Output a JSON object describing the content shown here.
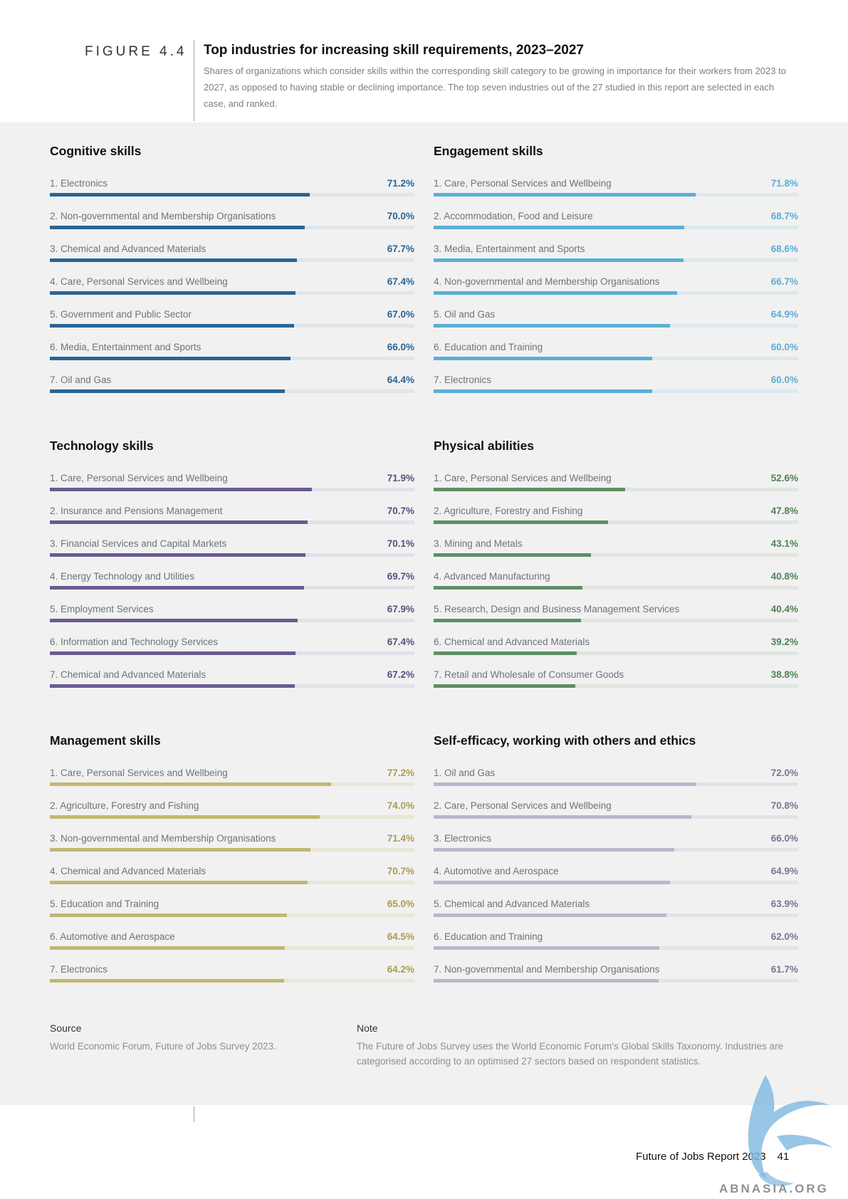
{
  "header": {
    "figure_label": "FIGURE 4.4",
    "title": "Top industries for increasing skill requirements, 2023–2027",
    "subtitle": "Shares of organizations which consider skills within the corresponding skill category to be growing in importance for their workers from 2023 to 2027, as opposed to having stable or declining importance. The top seven industries out of the 27 studied in this report are selected in each case, and ranked."
  },
  "chart_data": [
    {
      "type": "bar",
      "title": "Cognitive skills",
      "color": "#2a6496",
      "track_color": "#dfe6ea",
      "value_color": "#2a6496",
      "xlim": [
        0,
        100
      ],
      "categories": [
        "1. Electronics",
        "2. Non-governmental and Membership Organisations",
        "3. Chemical and Advanced Materials",
        "4. Care, Personal Services and Wellbeing",
        "5. Government and Public Sector",
        "6. Media, Entertainment and Sports",
        "7. Oil and Gas"
      ],
      "values": [
        71.2,
        70.0,
        67.7,
        67.4,
        67.0,
        66.0,
        64.4
      ],
      "value_labels": [
        "71.2%",
        "70.0%",
        "67.7%",
        "67.4%",
        "67.0%",
        "66.0%",
        "64.4%"
      ]
    },
    {
      "type": "bar",
      "title": "Engagement skills",
      "color": "#5aafd6",
      "track_color": "#dde8ee",
      "value_color": "#5aafd6",
      "xlim": [
        0,
        100
      ],
      "categories": [
        "1. Care, Personal Services and Wellbeing",
        "2. Accommodation, Food and Leisure",
        "3. Media, Entertainment and Sports",
        "4. Non-governmental and Membership Organisations",
        "5. Oil and Gas",
        "6. Education and Training",
        "7. Electronics"
      ],
      "values": [
        71.8,
        68.7,
        68.6,
        66.7,
        64.9,
        60.0,
        60.0
      ],
      "value_labels": [
        "71.8%",
        "68.7%",
        "68.6%",
        "66.7%",
        "64.9%",
        "60.0%",
        "60.0%"
      ]
    },
    {
      "type": "bar",
      "title": "Technology skills",
      "color": "#6b5a90",
      "track_color": "#e2e0e8",
      "value_color": "#5b4e7e",
      "xlim": [
        0,
        100
      ],
      "categories": [
        "1. Care, Personal Services and Wellbeing",
        "2. Insurance and Pensions Management",
        "3. Financial Services and Capital Markets",
        "4. Energy Technology and Utilities",
        "5. Employment Services",
        "6. Information and Technology Services",
        "7. Chemical and Advanced Materials"
      ],
      "values": [
        71.9,
        70.7,
        70.1,
        69.7,
        67.9,
        67.4,
        67.2
      ],
      "value_labels": [
        "71.9%",
        "70.7%",
        "70.1%",
        "69.7%",
        "67.9%",
        "67.4%",
        "67.2%"
      ]
    },
    {
      "type": "bar",
      "title": "Physical abilities",
      "color": "#5e8f63",
      "track_color": "#dfe6df",
      "value_color": "#4f8255",
      "xlim": [
        0,
        100
      ],
      "categories": [
        "1. Care, Personal Services and Wellbeing",
        "2. Agriculture, Forestry and Fishing",
        "3. Mining and Metals",
        "4. Advanced Manufacturing",
        "5. Research, Design and Business Management Services",
        "6. Chemical and Advanced Materials",
        "7. Retail and Wholesale of Consumer Goods"
      ],
      "values": [
        52.6,
        47.8,
        43.1,
        40.8,
        40.4,
        39.2,
        38.8
      ],
      "value_labels": [
        "52.6%",
        "47.8%",
        "43.1%",
        "40.8%",
        "40.4%",
        "39.2%",
        "38.8%"
      ]
    },
    {
      "type": "bar",
      "title": "Management skills",
      "color": "#c2b773",
      "track_color": "#e7e6d8",
      "value_color": "#a89c55",
      "xlim": [
        0,
        100
      ],
      "categories": [
        "1. Care, Personal Services and Wellbeing",
        "2. Agriculture, Forestry and Fishing",
        "3. Non-governmental and Membership Organisations",
        "4. Chemical and Advanced Materials",
        "5. Education and Training",
        "6. Automotive and Aerospace",
        "7. Electronics"
      ],
      "values": [
        77.2,
        74.0,
        71.4,
        70.7,
        65.0,
        64.5,
        64.2
      ],
      "value_labels": [
        "77.2%",
        "74.0%",
        "71.4%",
        "70.7%",
        "65.0%",
        "64.5%",
        "64.2%"
      ]
    },
    {
      "type": "bar",
      "title": "Self-efficacy, working with others and ethics",
      "color": "#bdb5cc",
      "track_color": "#e4e2e8",
      "value_color": "#7d7591",
      "xlim": [
        0,
        100
      ],
      "categories": [
        "1. Oil and Gas",
        "2. Care, Personal Services and Wellbeing",
        "3. Electronics",
        "4. Automotive and Aerospace",
        "5. Chemical and Advanced Materials",
        "6. Education and Training",
        "7. Non-governmental and Membership Organisations"
      ],
      "values": [
        72.0,
        70.8,
        66.0,
        64.9,
        63.9,
        62.0,
        61.7
      ],
      "value_labels": [
        "72.0%",
        "70.8%",
        "66.0%",
        "64.9%",
        "63.9%",
        "62.0%",
        "61.7%"
      ]
    }
  ],
  "source": {
    "heading": "Source",
    "text": "World Economic Forum, Future of Jobs Survey 2023."
  },
  "note": {
    "heading": "Note",
    "text": "The Future of Jobs Survey uses the World Economic Forum's Global Skills Taxonomy. Industries are categorised according to an optimised 27 sectors based on respondent statistics."
  },
  "footer": {
    "report": "Future of Jobs Report 2023",
    "page": "41"
  },
  "watermark": {
    "text": "ABNASIA.ORG"
  }
}
